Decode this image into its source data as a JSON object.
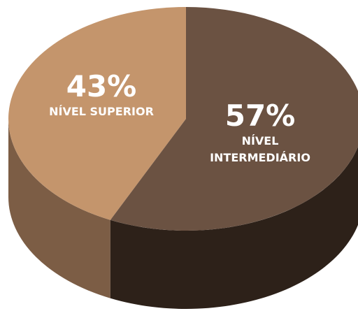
{
  "chart_data": {
    "type": "pie3d",
    "categories": [
      "NÍVEL SUPERIOR",
      "NÍVEL INTERMEDIÁRIO"
    ],
    "values": [
      43,
      57
    ],
    "value_labels": [
      "43%",
      "57%"
    ],
    "colors": [
      "#c4956c",
      "#6b5242"
    ],
    "side_colors": [
      "#7c5d45",
      "#2d2119"
    ]
  }
}
